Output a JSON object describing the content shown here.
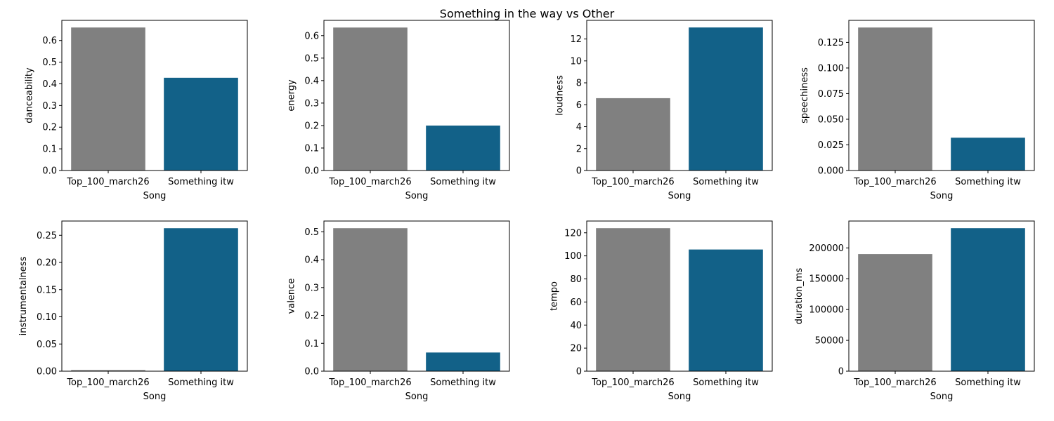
{
  "title": "Something in the way vs Other",
  "colors": {
    "other": "#808080",
    "target": "#126188"
  },
  "chart_data": [
    {
      "type": "bar",
      "xlabel": "Song",
      "ylabel": "danceability",
      "categories": [
        "Top_100_march26",
        "Something itw"
      ],
      "values": [
        0.66,
        0.428
      ],
      "ylim": [
        0,
        0.693
      ],
      "yticks": [
        0.0,
        0.1,
        0.2,
        0.3,
        0.4,
        0.5,
        0.6
      ],
      "ytick_labels": [
        "0.0",
        "0.1",
        "0.2",
        "0.3",
        "0.4",
        "0.5",
        "0.6"
      ]
    },
    {
      "type": "bar",
      "xlabel": "Song",
      "ylabel": "energy",
      "categories": [
        "Top_100_march26",
        "Something itw"
      ],
      "values": [
        0.636,
        0.2
      ],
      "ylim": [
        0,
        0.668
      ],
      "yticks": [
        0.0,
        0.1,
        0.2,
        0.3,
        0.4,
        0.5,
        0.6
      ],
      "ytick_labels": [
        "0.0",
        "0.1",
        "0.2",
        "0.3",
        "0.4",
        "0.5",
        "0.6"
      ]
    },
    {
      "type": "bar",
      "xlabel": "Song",
      "ylabel": "loudness",
      "categories": [
        "Top_100_march26",
        "Something itw"
      ],
      "values": [
        6.6,
        13.05
      ],
      "ylim": [
        0,
        13.7
      ],
      "yticks": [
        0,
        2,
        4,
        6,
        8,
        10,
        12
      ],
      "ytick_labels": [
        "0",
        "2",
        "4",
        "6",
        "8",
        "10",
        "12"
      ]
    },
    {
      "type": "bar",
      "xlabel": "Song",
      "ylabel": "speechiness",
      "categories": [
        "Top_100_march26",
        "Something itw"
      ],
      "values": [
        0.1395,
        0.032
      ],
      "ylim": [
        0,
        0.1465
      ],
      "yticks": [
        0.0,
        0.025,
        0.05,
        0.075,
        0.1,
        0.125
      ],
      "ytick_labels": [
        "0.000",
        "0.025",
        "0.050",
        "0.075",
        "0.100",
        "0.125"
      ]
    },
    {
      "type": "bar",
      "xlabel": "Song",
      "ylabel": "instrumentalness",
      "categories": [
        "Top_100_march26",
        "Something itw"
      ],
      "values": [
        0.002,
        0.263
      ],
      "ylim": [
        0,
        0.2762
      ],
      "yticks": [
        0.0,
        0.05,
        0.1,
        0.15,
        0.2,
        0.25
      ],
      "ytick_labels": [
        "0.00",
        "0.05",
        "0.10",
        "0.15",
        "0.20",
        "0.25"
      ]
    },
    {
      "type": "bar",
      "xlabel": "Song",
      "ylabel": "valence",
      "categories": [
        "Top_100_march26",
        "Something itw"
      ],
      "values": [
        0.513,
        0.067
      ],
      "ylim": [
        0,
        0.5387
      ],
      "yticks": [
        0.0,
        0.1,
        0.2,
        0.3,
        0.4,
        0.5
      ],
      "ytick_labels": [
        "0.0",
        "0.1",
        "0.2",
        "0.3",
        "0.4",
        "0.5"
      ]
    },
    {
      "type": "bar",
      "xlabel": "Song",
      "ylabel": "tempo",
      "categories": [
        "Top_100_march26",
        "Something itw"
      ],
      "values": [
        124,
        105.5
      ],
      "ylim": [
        0,
        130.2
      ],
      "yticks": [
        0,
        20,
        40,
        60,
        80,
        100,
        120
      ],
      "ytick_labels": [
        "0",
        "20",
        "40",
        "60",
        "80",
        "100",
        "120"
      ]
    },
    {
      "type": "bar",
      "xlabel": "Song",
      "ylabel": "duration_ms",
      "categories": [
        "Top_100_march26",
        "Something itw"
      ],
      "values": [
        190000,
        232000
      ],
      "ylim": [
        0,
        243600
      ],
      "yticks": [
        0,
        50000,
        100000,
        150000,
        200000
      ],
      "ytick_labels": [
        "0",
        "50000",
        "100000",
        "150000",
        "200000"
      ]
    }
  ]
}
